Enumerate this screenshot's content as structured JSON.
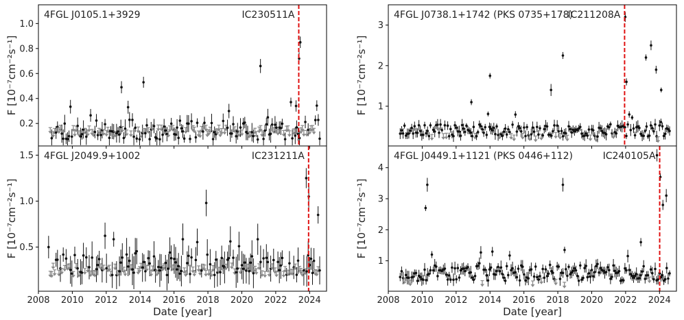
{
  "chart_data": [
    {
      "type": "scatter",
      "source": "4FGL J0105.1+3929",
      "event": "IC230511A",
      "event_year": 2023.36,
      "ylabel": "F [10⁻⁷cm⁻²s⁻¹]",
      "xlabel": "",
      "xlim": [
        2008,
        2025
      ],
      "ylim": [
        0.02,
        1.15
      ],
      "yticks": [
        0.2,
        0.4,
        0.6,
        0.8,
        1.0
      ],
      "ytick_labels": [
        "0.2",
        "0.4",
        "0.6",
        "0.8",
        "1.0"
      ],
      "xticks": [],
      "seed": 11,
      "base": 0.15,
      "spread": 0.08,
      "err": 0.05,
      "ul_frac": 0.45,
      "ul_value": 0.16,
      "highlights": [
        [
          2012.9,
          0.49
        ],
        [
          2014.2,
          0.53
        ],
        [
          2021.1,
          0.66
        ],
        [
          2023.45,
          0.85
        ],
        [
          2023.38,
          0.72
        ],
        [
          2023.2,
          0.34
        ]
      ]
    },
    {
      "type": "scatter",
      "source": "4FGL J0738.1+1742 (PKS 0735+178)",
      "event": "IC211208A",
      "event_year": 2021.94,
      "ylabel": "F [10⁻⁷cm⁻²s⁻¹]",
      "xlabel": "",
      "xlim": [
        2008,
        2025
      ],
      "ylim": [
        0.02,
        3.5
      ],
      "yticks": [
        1,
        2,
        3
      ],
      "ytick_labels": [
        "1",
        "2",
        "3"
      ],
      "xticks": [],
      "seed": 23,
      "base": 0.4,
      "spread": 0.15,
      "err": 0.1,
      "ul_frac": 0.08,
      "ul_value": 0.3,
      "highlights": [
        [
          2012.9,
          1.1
        ],
        [
          2014.0,
          1.75
        ],
        [
          2017.6,
          1.4
        ],
        [
          2018.3,
          2.25
        ],
        [
          2021.98,
          3.2
        ],
        [
          2022.05,
          1.6
        ],
        [
          2023.2,
          2.2
        ],
        [
          2023.5,
          2.5
        ],
        [
          2023.8,
          1.9
        ],
        [
          2024.1,
          1.4
        ]
      ]
    },
    {
      "type": "scatter",
      "source": "4FGL J2049.9+1002",
      "event": "IC231211A",
      "event_year": 2023.94,
      "ylabel": "F [10⁻⁷cm⁻²s⁻¹]",
      "xlabel": "Date [year]",
      "xlim": [
        2008,
        2025
      ],
      "ylim": [
        0.02,
        1.6
      ],
      "yticks": [
        0.5,
        1.0,
        1.5
      ],
      "ytick_labels": [
        "0.5",
        "1.0",
        "1.5"
      ],
      "xticks": [
        2008,
        2010,
        2012,
        2014,
        2016,
        2018,
        2020,
        2022,
        2024
      ],
      "xtick_labels": [
        "2008",
        "2010",
        "2012",
        "2014",
        "2016",
        "2018",
        "2020",
        "2022",
        "2024"
      ],
      "seed": 37,
      "base": 0.3,
      "spread": 0.12,
      "err": 0.12,
      "ul_frac": 0.35,
      "ul_value": 0.28,
      "highlights": [
        [
          2017.9,
          0.98
        ],
        [
          2023.8,
          1.25
        ],
        [
          2023.95,
          1.05
        ],
        [
          2024.5,
          0.85
        ],
        [
          2008.6,
          0.5
        ]
      ]
    },
    {
      "type": "scatter",
      "source": "4FGL J0449.1+1121 (PKS 0446+112)",
      "event": "IC240105A",
      "event_year": 2024.01,
      "ylabel": "F [10⁻⁷cm⁻²s⁻¹]",
      "xlabel": "Date [year]",
      "xlim": [
        2008,
        2025
      ],
      "ylim": [
        0.02,
        4.7
      ],
      "yticks": [
        1,
        2,
        3,
        4
      ],
      "ytick_labels": [
        "1",
        "2",
        "3",
        "4"
      ],
      "xticks": [
        2008,
        2010,
        2012,
        2014,
        2016,
        2018,
        2020,
        2022,
        2024
      ],
      "xtick_labels": [
        "2008",
        "2010",
        "2012",
        "2014",
        "2016",
        "2018",
        "2020",
        "2022",
        "2024"
      ],
      "seed": 53,
      "base": 0.6,
      "spread": 0.25,
      "err": 0.15,
      "ul_frac": 0.05,
      "ul_value": 0.4,
      "highlights": [
        [
          2010.3,
          3.45
        ],
        [
          2010.2,
          2.7
        ],
        [
          2018.3,
          3.45
        ],
        [
          2018.4,
          1.35
        ],
        [
          2023.85,
          4.4
        ],
        [
          2024.05,
          3.7
        ],
        [
          2024.2,
          2.8
        ],
        [
          2024.4,
          3.1
        ],
        [
          2022.9,
          1.6
        ]
      ]
    }
  ]
}
